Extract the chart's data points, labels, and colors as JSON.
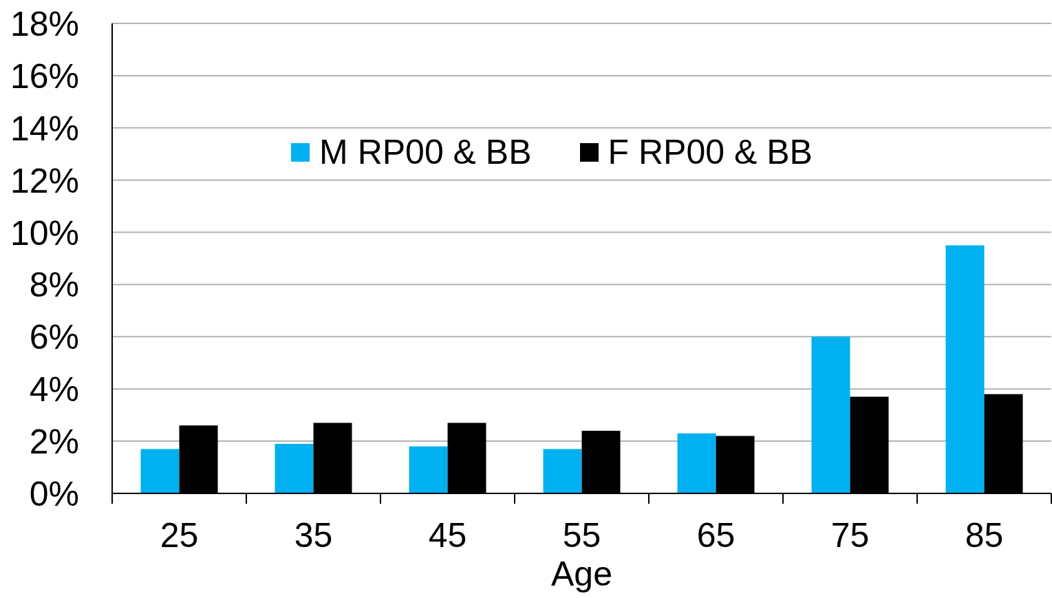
{
  "chart_data": {
    "type": "bar",
    "xlabel": "Age",
    "categories": [
      "25",
      "35",
      "45",
      "55",
      "65",
      "75",
      "85"
    ],
    "series": [
      {
        "name": "M RP00 & BB",
        "color": "#00b0f0",
        "values": [
          1.7,
          1.9,
          1.8,
          1.7,
          2.3,
          6.0,
          9.5
        ]
      },
      {
        "name": "F RP00 & BB",
        "color": "#000000",
        "values": [
          2.6,
          2.7,
          2.7,
          2.4,
          2.2,
          3.7,
          3.8
        ]
      }
    ],
    "ylim": [
      0,
      18
    ],
    "yticks": [
      {
        "value": 0,
        "label": "0%"
      },
      {
        "value": 2,
        "label": "2%"
      },
      {
        "value": 4,
        "label": "4%"
      },
      {
        "value": 6,
        "label": "6%"
      },
      {
        "value": 8,
        "label": "8%"
      },
      {
        "value": 10,
        "label": "10%"
      },
      {
        "value": 12,
        "label": "12%"
      },
      {
        "value": 14,
        "label": "14%"
      },
      {
        "value": 16,
        "label": "16%"
      },
      {
        "value": 18,
        "label": "18%"
      }
    ],
    "grid": "y",
    "legend": "top"
  }
}
